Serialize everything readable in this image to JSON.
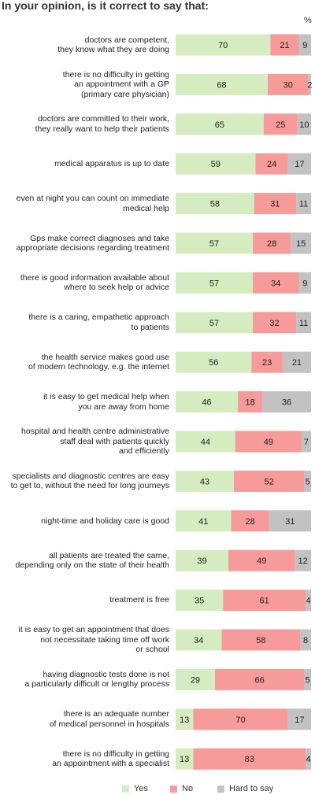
{
  "title": "In your opinion, is it correct to say that:",
  "unit": "%",
  "colors": {
    "yes": "#d4ecbf",
    "no": "#f79a9a",
    "hard": "#c2c2c2"
  },
  "legend": [
    {
      "label": "Yes",
      "color": "#d4ecbf"
    },
    {
      "label": "No",
      "color": "#f79a9a"
    },
    {
      "label": "Hard to say",
      "color": "#c2c2c2"
    }
  ],
  "chart_data": {
    "type": "bar",
    "orientation": "horizontal",
    "stacked": true,
    "title": "In your opinion, is it correct to say that:",
    "xlim": [
      0,
      100
    ],
    "categories": [
      [
        "doctors are competent,",
        "they know what they are doing"
      ],
      [
        "there is no difficulty in getting",
        "an appointment with a GP",
        "(primary care physician)"
      ],
      [
        "doctors are committed to their work,",
        "they really want to help their patients"
      ],
      [
        "medical apparatus is up to date"
      ],
      [
        "even at night you can count on immediate",
        "medical help"
      ],
      [
        "Gps make correct diagnoses and take",
        "appropriate decisions regarding treatment"
      ],
      [
        "there is good information available about",
        "where to seek help or advice"
      ],
      [
        "there is a caring, empathetic approach",
        "to patients"
      ],
      [
        "the health service makes good use",
        "of modern technology, e.g. the internet"
      ],
      [
        "it is easy to get medical help when",
        "you are away from home"
      ],
      [
        "hospital and health centre administrative",
        "staff deal with patients quickly",
        "and efficiently"
      ],
      [
        "specialists and diagnostic centres are easy",
        "to get to, without the need for long journeys"
      ],
      [
        "night-time and holiday care is good"
      ],
      [
        "all patients are treated the same,",
        "depending only on the state of their health"
      ],
      [
        "treatment is free"
      ],
      [
        "it is easy to get an appointment that does",
        "not necessitate taking time off work",
        "or school"
      ],
      [
        "having diagnostic tests done is not",
        "a particularly difficult or lengthy process"
      ],
      [
        "there is an adequate number",
        "of medical personnel in hospitals"
      ],
      [
        "there is no difficulty in getting",
        "an appointment with a specialist"
      ]
    ],
    "series": [
      {
        "name": "Yes",
        "values": [
          70,
          68,
          65,
          59,
          58,
          57,
          57,
          57,
          56,
          46,
          44,
          43,
          41,
          39,
          35,
          34,
          29,
          13,
          13
        ]
      },
      {
        "name": "No",
        "values": [
          21,
          30,
          25,
          24,
          31,
          28,
          34,
          32,
          23,
          18,
          49,
          52,
          28,
          49,
          61,
          58,
          66,
          70,
          83
        ]
      },
      {
        "name": "Hard to say",
        "values": [
          9,
          2,
          10,
          17,
          11,
          15,
          9,
          11,
          21,
          36,
          7,
          5,
          31,
          12,
          4,
          8,
          5,
          17,
          4
        ]
      }
    ]
  }
}
